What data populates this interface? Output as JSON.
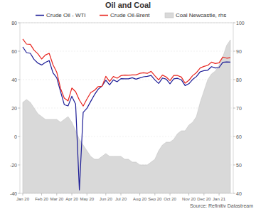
{
  "chart_data": {
    "type": "line",
    "title": "Oil and Coal",
    "source": "Source: Refinitiv Datastream",
    "categories": [
      "Jan 20",
      null,
      null,
      null,
      null,
      "Feb 20",
      null,
      null,
      null,
      "Mar 20",
      null,
      null,
      null,
      "Apr 20",
      null,
      null,
      null,
      "May 20",
      null,
      null,
      null,
      null,
      "Jun 20",
      null,
      null,
      null,
      "Jul 20",
      null,
      null,
      null,
      null,
      "Aug 20",
      null,
      null,
      null,
      "Sep 20",
      null,
      null,
      null,
      "Oct 20",
      null,
      null,
      null,
      null,
      "Nov 20",
      null,
      null,
      null,
      "Dec 20",
      null,
      null,
      null,
      "Jan 21",
      null,
      null,
      null
    ],
    "series": [
      {
        "name": "Crude Oil - WTI",
        "color": "#1c1c96",
        "type": "line",
        "values": [
          63.0,
          59.0,
          58.5,
          54.2,
          51.6,
          50.3,
          52.1,
          53.4,
          44.8,
          41.3,
          31.7,
          22.4,
          21.5,
          28.3,
          22.8,
          -37.6,
          16.9,
          19.8,
          24.7,
          29.4,
          33.3,
          35.5,
          39.6,
          36.3,
          39.8,
          38.5,
          40.7,
          40.6,
          40.6,
          41.3,
          40.3,
          41.2,
          42.0,
          42.3,
          42.9,
          39.8,
          37.3,
          41.1,
          40.3,
          37.1,
          40.6,
          40.9,
          39.9,
          35.8,
          37.1,
          40.1,
          42.2,
          45.5,
          46.3,
          46.6,
          49.1,
          48.2,
          48.5,
          52.2,
          52.4,
          52.3
        ]
      },
      {
        "name": "Crude Oil-Brent",
        "color": "#e8251f",
        "type": "line",
        "values": [
          68.6,
          65.0,
          64.8,
          60.7,
          58.2,
          54.5,
          57.3,
          58.5,
          50.5,
          45.3,
          33.9,
          27.0,
          25.0,
          34.1,
          31.5,
          25.6,
          21.4,
          26.4,
          30.9,
          32.5,
          35.1,
          35.3,
          42.3,
          38.7,
          42.2,
          41.0,
          42.8,
          43.2,
          43.1,
          43.3,
          43.3,
          44.4,
          44.8,
          44.4,
          45.8,
          42.7,
          39.8,
          43.2,
          41.9,
          39.3,
          42.9,
          42.9,
          41.8,
          37.5,
          39.5,
          42.8,
          44.9,
          48.2,
          49.3,
          50.0,
          52.3,
          51.3,
          51.8,
          55.9,
          55.1,
          55.4
        ]
      },
      {
        "name": "Coal Newcastle, rhs",
        "color": "#d9d9d9",
        "type": "area",
        "axis": "y2",
        "values": [
          72,
          73,
          72,
          70,
          68,
          67,
          66,
          66,
          66,
          66,
          65,
          66,
          67,
          65,
          62,
          59,
          57,
          55,
          53,
          52,
          52,
          53,
          54,
          53,
          53,
          53,
          53,
          52,
          52,
          51,
          51,
          50,
          50,
          50,
          51,
          52,
          55,
          57,
          58,
          58,
          59,
          61,
          62,
          62,
          64,
          65,
          67,
          72,
          76,
          80,
          82,
          83,
          85,
          88,
          92,
          94
        ]
      }
    ],
    "ylim": [
      -40,
      80
    ],
    "yticks": [
      -40,
      -20,
      0,
      20,
      40,
      60,
      80
    ],
    "y2lim": [
      40,
      100
    ],
    "y2ticks": [
      40,
      50,
      60,
      70,
      80,
      90,
      100
    ],
    "grid": true,
    "legend": "top"
  }
}
